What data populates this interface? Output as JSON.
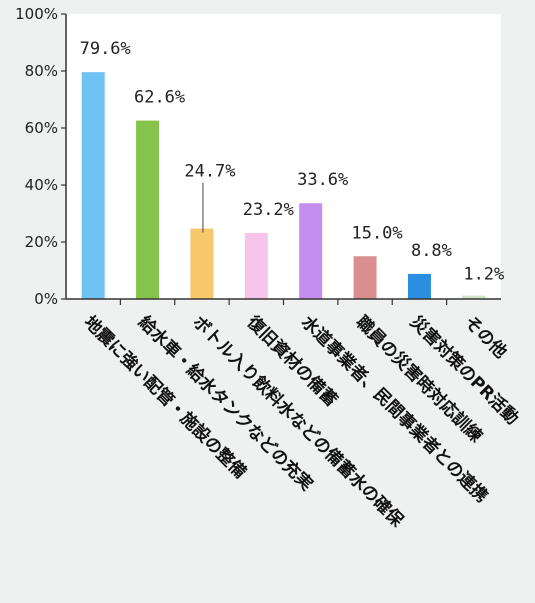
{
  "chart_data": {
    "type": "bar",
    "title": "",
    "xlabel": "",
    "ylabel": "",
    "ylim": [
      0,
      100
    ],
    "y_ticks": [
      "0%",
      "20%",
      "40%",
      "60%",
      "80%",
      "100%"
    ],
    "grid": false,
    "categories": [
      "地震に強い配管・施設の整備",
      "給水車・給水タンクなどの充実",
      "ボトル入り飲料水などの備蓄水の確保",
      "復旧資材の備蓄",
      "水道事業者、民間事業者との連携",
      "職員の災害時対応訓練",
      "災害対策のPR活動",
      "その他"
    ],
    "values": [
      79.6,
      62.6,
      24.7,
      23.2,
      33.6,
      15.0,
      8.8,
      1.2
    ],
    "value_labels": [
      "79.6%",
      "62.6%",
      "24.7%",
      "23.2%",
      "33.6%",
      "15.0%",
      "8.8%",
      "1.2%"
    ],
    "colors": [
      "#6ec3f2",
      "#86c34a",
      "#f7c86b",
      "#f5c4e8",
      "#c48ef0",
      "#d98f8f",
      "#2a8fe0",
      "#d0e4c8"
    ]
  }
}
